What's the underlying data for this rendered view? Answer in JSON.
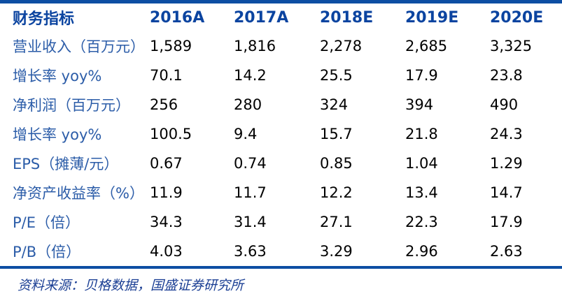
{
  "table": {
    "header": {
      "label": "财务指标",
      "columns": [
        "2016A",
        "2017A",
        "2018E",
        "2019E",
        "2020E"
      ]
    },
    "rows": [
      {
        "label": "营业收入（百万元）",
        "values": [
          "1,589",
          "1,816",
          "2,278",
          "2,685",
          "3,325"
        ]
      },
      {
        "label": "增长率 yoy%",
        "values": [
          "70.1",
          "14.2",
          "25.5",
          "17.9",
          "23.8"
        ]
      },
      {
        "label": "净利润（百万元）",
        "values": [
          "256",
          "280",
          "324",
          "394",
          "490"
        ]
      },
      {
        "label": "增长率 yoy%",
        "values": [
          "100.5",
          "9.4",
          "15.7",
          "21.8",
          "24.3"
        ]
      },
      {
        "label": "EPS（摊薄/元）",
        "values": [
          "0.67",
          "0.74",
          "0.85",
          "1.04",
          "1.29"
        ]
      },
      {
        "label": "净资产收益率（%）",
        "values": [
          "11.9",
          "11.7",
          "12.2",
          "13.4",
          "14.7"
        ]
      },
      {
        "label": "P/E（倍）",
        "values": [
          "34.3",
          "31.4",
          "27.1",
          "22.3",
          "17.9"
        ]
      },
      {
        "label": "P/B（倍）",
        "values": [
          "4.03",
          "3.63",
          "3.29",
          "2.96",
          "2.63"
        ]
      }
    ],
    "source_note": "资料来源：贝格数据，国盛证券研究所"
  },
  "colors": {
    "rule_blue": "#0d4ea3",
    "header_text": "#0b44a0",
    "label_text": "#2b5ca8",
    "value_text": "#000000",
    "source_text": "#1b3f94"
  }
}
